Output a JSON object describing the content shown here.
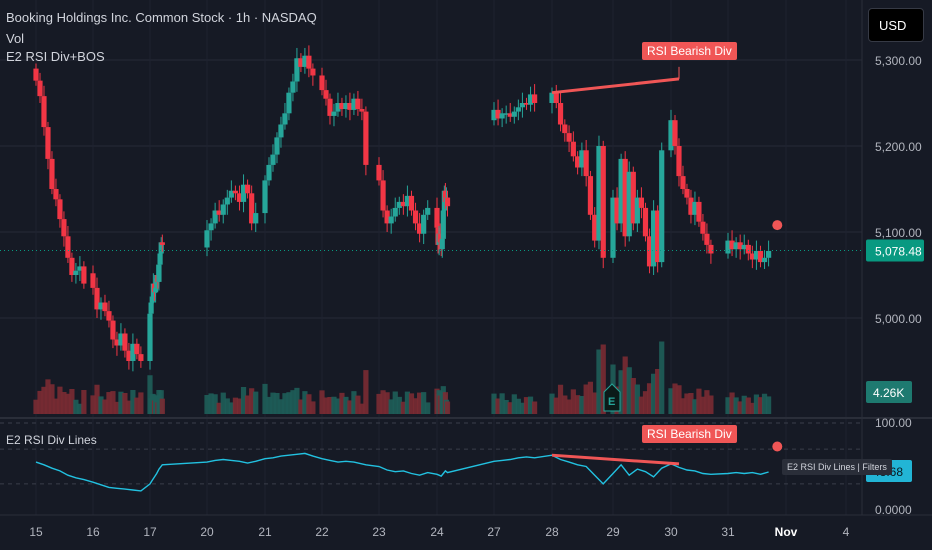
{
  "header": {
    "symbol_line": "Booking Holdings Inc. Common Stock · 1h · NASDAQ",
    "vol_label": "Vol",
    "indicator_label": "E2 RSI Div+BOS"
  },
  "currency_button": "USD",
  "colors": {
    "up": "#26a69a",
    "down": "#f23645",
    "rsi_line": "#22c1e0",
    "annotation": "#f05656",
    "price_tag": "#089981",
    "background": "#161a25"
  },
  "chart_data": [
    {
      "type": "candlestick",
      "title": "Booking Holdings Inc. Common Stock · 1h · NASDAQ",
      "x_ticks": [
        "15",
        "16",
        "17",
        "20",
        "21",
        "22",
        "23",
        "24",
        "27",
        "28",
        "29",
        "30",
        "31",
        "Nov",
        "4"
      ],
      "y_ticks": [
        "5,300.00",
        "5,200.00",
        "5,100.00",
        "5,000.00"
      ],
      "ylim": [
        4920,
        5340
      ],
      "last_price": "5,078.48",
      "last_price_value": 5078.48,
      "annotation": {
        "label": "RSI Bearish Div",
        "from": {
          "day": 28.0,
          "price": 5262
        },
        "to": {
          "day": 30.0,
          "price": 5278
        }
      },
      "marker": {
        "day": 31.85,
        "price": 5108
      },
      "candles": [
        [
          15.0,
          5290,
          5276
        ],
        [
          15.07,
          5276,
          5258
        ],
        [
          15.14,
          5258,
          5222
        ],
        [
          15.21,
          5222,
          5185
        ],
        [
          15.28,
          5185,
          5150
        ],
        [
          15.35,
          5150,
          5138
        ],
        [
          15.42,
          5138,
          5115
        ],
        [
          15.49,
          5115,
          5095
        ],
        [
          15.56,
          5095,
          5070
        ],
        [
          15.63,
          5070,
          5050
        ],
        [
          15.7,
          5050,
          5055
        ],
        [
          15.77,
          5055,
          5060
        ],
        [
          15.84,
          5060,
          5040
        ],
        [
          16.0,
          5052,
          5035
        ],
        [
          16.07,
          5035,
          5010
        ],
        [
          16.14,
          5010,
          5018
        ],
        [
          16.21,
          5018,
          5008
        ],
        [
          16.28,
          5008,
          4997
        ],
        [
          16.35,
          4997,
          4975
        ],
        [
          16.42,
          4975,
          4968
        ],
        [
          16.49,
          4968,
          4982
        ],
        [
          16.56,
          4982,
          4962
        ],
        [
          16.63,
          4962,
          4950
        ],
        [
          16.7,
          4950,
          4970
        ],
        [
          16.77,
          4970,
          4958
        ],
        [
          16.84,
          4958,
          4950
        ],
        [
          17.0,
          4950,
          5005
        ],
        [
          17.07,
          5005,
          5018
        ],
        [
          17.14,
          5018,
          5025
        ],
        [
          17.21,
          5025,
          5040
        ],
        [
          17.28,
          5040,
          5030
        ],
        [
          17.35,
          5030,
          5035
        ],
        [
          17.42,
          5035,
          5050
        ],
        [
          17.49,
          5050,
          5042
        ],
        [
          17.56,
          5042,
          5062
        ],
        [
          17.63,
          5062,
          5075
        ],
        [
          17.7,
          5075,
          5088
        ],
        [
          17.77,
          5088,
          5085
        ],
        [
          20.0,
          5082,
          5102
        ],
        [
          20.07,
          5102,
          5110
        ],
        [
          20.14,
          5110,
          5125
        ],
        [
          20.21,
          5125,
          5120
        ],
        [
          20.28,
          5120,
          5132
        ],
        [
          20.35,
          5132,
          5140
        ],
        [
          20.42,
          5140,
          5148
        ],
        [
          20.49,
          5148,
          5145
        ],
        [
          20.56,
          5145,
          5135
        ],
        [
          20.63,
          5135,
          5155
        ],
        [
          20.7,
          5155,
          5145
        ],
        [
          20.77,
          5145,
          5110
        ],
        [
          20.84,
          5110,
          5122
        ],
        [
          21.0,
          5122,
          5160
        ],
        [
          21.07,
          5160,
          5178
        ],
        [
          21.14,
          5178,
          5190
        ],
        [
          21.21,
          5190,
          5210
        ],
        [
          21.28,
          5210,
          5225
        ],
        [
          21.35,
          5225,
          5238
        ],
        [
          21.42,
          5238,
          5262
        ],
        [
          21.49,
          5262,
          5275
        ],
        [
          21.56,
          5275,
          5302
        ],
        [
          21.63,
          5302,
          5292
        ],
        [
          21.7,
          5292,
          5305
        ],
        [
          21.77,
          5305,
          5290
        ],
        [
          21.84,
          5290,
          5282
        ],
        [
          22.0,
          5282,
          5265
        ],
        [
          22.07,
          5265,
          5255
        ],
        [
          22.14,
          5255,
          5235
        ],
        [
          22.21,
          5235,
          5240
        ],
        [
          22.28,
          5240,
          5250
        ],
        [
          22.35,
          5250,
          5243
        ],
        [
          22.42,
          5243,
          5250
        ],
        [
          22.49,
          5250,
          5242
        ],
        [
          22.56,
          5242,
          5255
        ],
        [
          22.63,
          5255,
          5243
        ],
        [
          22.7,
          5243,
          5240
        ],
        [
          22.77,
          5240,
          5178
        ],
        [
          23.0,
          5178,
          5160
        ],
        [
          23.07,
          5160,
          5125
        ],
        [
          23.14,
          5125,
          5110
        ],
        [
          23.21,
          5110,
          5118
        ],
        [
          23.28,
          5118,
          5128
        ],
        [
          23.35,
          5128,
          5135
        ],
        [
          23.42,
          5135,
          5130
        ],
        [
          23.49,
          5130,
          5142
        ],
        [
          23.56,
          5142,
          5125
        ],
        [
          23.63,
          5125,
          5110
        ],
        [
          23.7,
          5110,
          5098
        ],
        [
          23.77,
          5098,
          5120
        ],
        [
          23.84,
          5120,
          5128
        ],
        [
          24.0,
          5128,
          5105
        ],
        [
          24.07,
          5105,
          5085
        ],
        [
          24.14,
          5085,
          5098
        ],
        [
          24.21,
          5098,
          5088
        ],
        [
          24.28,
          5088,
          5080
        ],
        [
          24.35,
          5080,
          5092
        ],
        [
          24.42,
          5092,
          5125
        ],
        [
          24.49,
          5125,
          5148
        ],
        [
          24.56,
          5148,
          5135
        ],
        [
          24.63,
          5135,
          5140
        ],
        [
          24.7,
          5140,
          5130
        ],
        [
          27.0,
          5230,
          5242
        ],
        [
          27.07,
          5242,
          5232
        ],
        [
          27.14,
          5232,
          5238
        ],
        [
          27.21,
          5238,
          5238
        ],
        [
          27.28,
          5238,
          5234
        ],
        [
          27.35,
          5234,
          5240
        ],
        [
          27.42,
          5240,
          5245
        ],
        [
          27.49,
          5245,
          5250
        ],
        [
          27.56,
          5250,
          5248
        ],
        [
          27.63,
          5248,
          5260
        ],
        [
          27.7,
          5260,
          5250
        ],
        [
          28.0,
          5250,
          5262
        ],
        [
          28.07,
          5262,
          5250
        ],
        [
          28.14,
          5250,
          5225
        ],
        [
          28.21,
          5225,
          5215
        ],
        [
          28.28,
          5215,
          5205
        ],
        [
          28.35,
          5205,
          5188
        ],
        [
          28.42,
          5188,
          5175
        ],
        [
          28.49,
          5175,
          5195
        ],
        [
          28.56,
          5195,
          5165
        ],
        [
          28.63,
          5165,
          5120
        ],
        [
          28.7,
          5120,
          5090
        ],
        [
          28.77,
          5090,
          5200
        ],
        [
          28.84,
          5200,
          5070
        ],
        [
          29.0,
          5070,
          5140
        ],
        [
          29.07,
          5140,
          5110
        ],
        [
          29.14,
          5110,
          5185
        ],
        [
          29.21,
          5185,
          5095
        ],
        [
          29.28,
          5095,
          5170
        ],
        [
          29.35,
          5170,
          5110
        ],
        [
          29.42,
          5110,
          5140
        ],
        [
          29.49,
          5140,
          5128
        ],
        [
          29.56,
          5128,
          5095
        ],
        [
          29.63,
          5095,
          5060
        ],
        [
          29.7,
          5060,
          5125
        ],
        [
          29.77,
          5125,
          5065
        ],
        [
          29.84,
          5065,
          5195
        ],
        [
          30.0,
          5195,
          5230
        ],
        [
          30.07,
          5230,
          5200
        ],
        [
          30.14,
          5200,
          5165
        ],
        [
          30.21,
          5165,
          5150
        ],
        [
          30.28,
          5150,
          5140
        ],
        [
          30.35,
          5140,
          5120
        ],
        [
          30.42,
          5120,
          5135
        ],
        [
          30.49,
          5135,
          5112
        ],
        [
          30.56,
          5112,
          5098
        ],
        [
          30.63,
          5098,
          5085
        ],
        [
          30.7,
          5085,
          5075
        ],
        [
          31.0,
          5075,
          5090
        ],
        [
          31.07,
          5090,
          5080
        ],
        [
          31.14,
          5080,
          5088
        ],
        [
          31.21,
          5088,
          5080
        ],
        [
          31.28,
          5080,
          5085
        ],
        [
          31.35,
          5085,
          5075
        ],
        [
          31.42,
          5075,
          5068
        ],
        [
          31.49,
          5068,
          5078
        ],
        [
          31.56,
          5078,
          5065
        ],
        [
          31.63,
          5065,
          5070
        ],
        [
          31.7,
          5070,
          5078
        ]
      ],
      "volume": {
        "label": "Vol",
        "last_value": "4.26K"
      }
    },
    {
      "type": "line",
      "title": "E2 RSI Div Lines",
      "legend": "E2 RSI Div Lines | Filters",
      "y_ticks": [
        "100.00",
        "0.0000"
      ],
      "ylim": [
        0,
        100
      ],
      "last_value": "43.68",
      "annotation": {
        "label": "RSI Bearish Div",
        "from": {
          "day": 28.0,
          "value": 63
        },
        "to": {
          "day": 30.0,
          "value": 53
        }
      },
      "marker": {
        "day": 31.85,
        "value": 73
      },
      "series": [
        {
          "values": [
            [
              15.0,
              55
            ],
            [
              15.14,
              52
            ],
            [
              15.28,
              48
            ],
            [
              15.42,
              45
            ],
            [
              15.56,
              40
            ],
            [
              15.7,
              37
            ],
            [
              15.84,
              35
            ],
            [
              16.0,
              32
            ],
            [
              16.14,
              29
            ],
            [
              16.28,
              26
            ],
            [
              16.42,
              25
            ],
            [
              16.56,
              24
            ],
            [
              16.7,
              23
            ],
            [
              16.84,
              22
            ],
            [
              17.0,
              30
            ],
            [
              17.14,
              34
            ],
            [
              17.28,
              38
            ],
            [
              17.42,
              42
            ],
            [
              17.56,
              47
            ],
            [
              17.77,
              52
            ],
            [
              20.0,
              55
            ],
            [
              20.14,
              57
            ],
            [
              20.28,
              58
            ],
            [
              20.42,
              57
            ],
            [
              20.56,
              56
            ],
            [
              20.7,
              54
            ],
            [
              20.84,
              56
            ],
            [
              21.0,
              59
            ],
            [
              21.14,
              60
            ],
            [
              21.28,
              62
            ],
            [
              21.42,
              63
            ],
            [
              21.56,
              64
            ],
            [
              21.7,
              65
            ],
            [
              21.84,
              62
            ],
            [
              22.0,
              59
            ],
            [
              22.14,
              57
            ],
            [
              22.28,
              55
            ],
            [
              22.42,
              56
            ],
            [
              22.56,
              55
            ],
            [
              22.77,
              52
            ],
            [
              23.0,
              50
            ],
            [
              23.14,
              46
            ],
            [
              23.28,
              44
            ],
            [
              23.42,
              45
            ],
            [
              23.56,
              42
            ],
            [
              23.7,
              40
            ],
            [
              23.84,
              43
            ],
            [
              24.0,
              41
            ],
            [
              24.14,
              40
            ],
            [
              24.28,
              39
            ],
            [
              24.42,
              42
            ],
            [
              24.56,
              45
            ],
            [
              24.7,
              43
            ],
            [
              27.0,
              56
            ],
            [
              27.14,
              57
            ],
            [
              27.28,
              58
            ],
            [
              27.42,
              60
            ],
            [
              27.56,
              61
            ],
            [
              27.7,
              60
            ],
            [
              28.0,
              63
            ],
            [
              28.14,
              58
            ],
            [
              28.28,
              55
            ],
            [
              28.42,
              52
            ],
            [
              28.56,
              50
            ],
            [
              28.7,
              40
            ],
            [
              28.84,
              30
            ],
            [
              29.0,
              42
            ],
            [
              29.14,
              52
            ],
            [
              29.28,
              40
            ],
            [
              29.42,
              47
            ],
            [
              29.56,
              44
            ],
            [
              29.7,
              38
            ],
            [
              29.84,
              48
            ],
            [
              30.0,
              53
            ],
            [
              30.14,
              49
            ],
            [
              30.28,
              46
            ],
            [
              30.42,
              45
            ],
            [
              30.56,
              42
            ],
            [
              30.7,
              41
            ],
            [
              31.0,
              42
            ],
            [
              31.14,
              43
            ],
            [
              31.28,
              42
            ],
            [
              31.42,
              43
            ],
            [
              31.56,
              41
            ],
            [
              31.7,
              43.68
            ]
          ]
        }
      ]
    }
  ]
}
